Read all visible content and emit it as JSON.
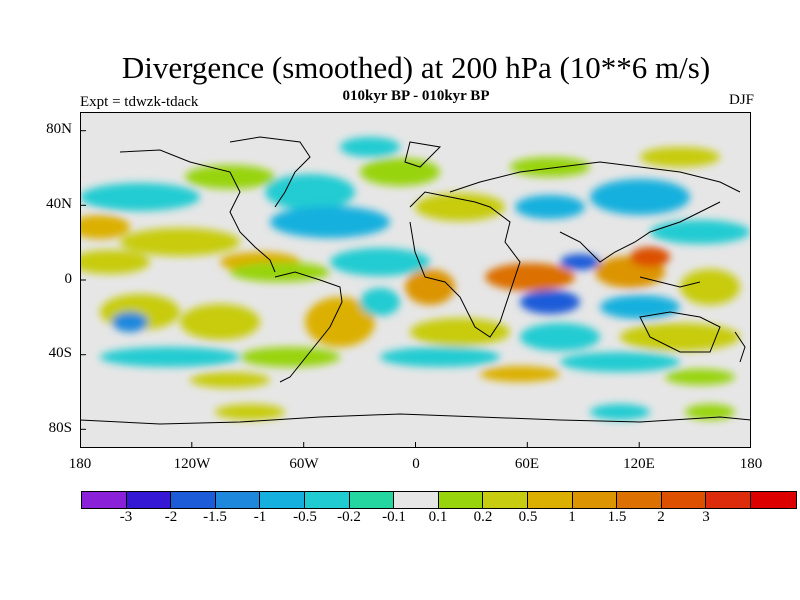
{
  "header": {
    "title": "Divergence (smoothed) at 200 hPa (10**6 m/s)",
    "subtitle": "010kyr BP - 010kyr BP",
    "expt": "Expt = tdwzk-tdack",
    "season": "DJF"
  },
  "map": {
    "projection": "cylindrical-equidistant",
    "background_color": "#e6e6e6",
    "y_ticks": [
      "80N",
      "40N",
      "0",
      "40S",
      "80S"
    ],
    "x_ticks": [
      "180",
      "120W",
      "60W",
      "0",
      "60E",
      "120E",
      "180"
    ]
  },
  "legend": {
    "colors": [
      "#8a20d8",
      "#3418d4",
      "#1c5cd8",
      "#1e88dc",
      "#16b0de",
      "#20ccd2",
      "#24d6a0",
      "#e6e6e6",
      "#98d40c",
      "#c8cc10",
      "#dcb000",
      "#dc9400",
      "#dc7000",
      "#dc5000",
      "#dc2c0c",
      "#dc0000"
    ],
    "labels": [
      "-3",
      "-2",
      "-1.5",
      "-1",
      "-0.5",
      "-0.2",
      "-0.1",
      "0.1",
      "0.2",
      "0.5",
      "1",
      "1.5",
      "2",
      "3"
    ]
  }
}
